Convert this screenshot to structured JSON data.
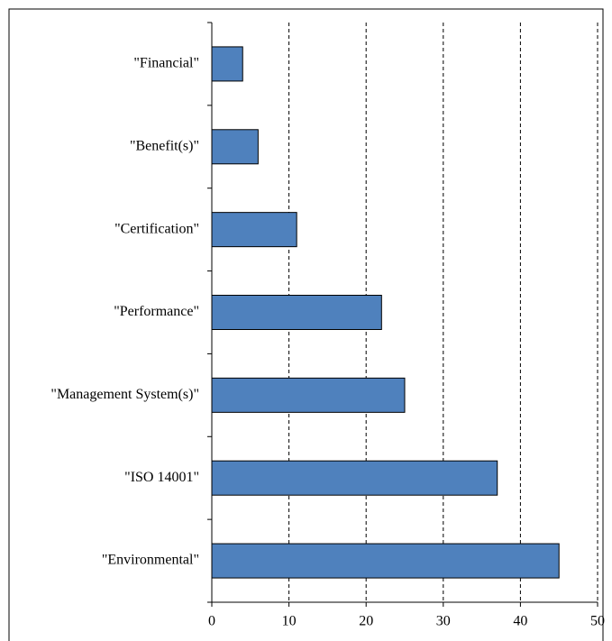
{
  "chart_data": {
    "type": "bar",
    "orientation": "horizontal",
    "categories": [
      "\"Financial\"",
      "\"Benefit(s)\"",
      "\"Certification\"",
      "\"Performance\"",
      "\"Management System(s)\"",
      "\"ISO 14001\"",
      "\"Environmental\""
    ],
    "values": [
      4,
      6,
      11,
      22,
      25,
      37,
      45
    ],
    "color": "#4f81bd",
    "xlim": [
      0,
      50
    ],
    "xticks": [
      0,
      10,
      20,
      30,
      40,
      50
    ],
    "grid": true
  }
}
